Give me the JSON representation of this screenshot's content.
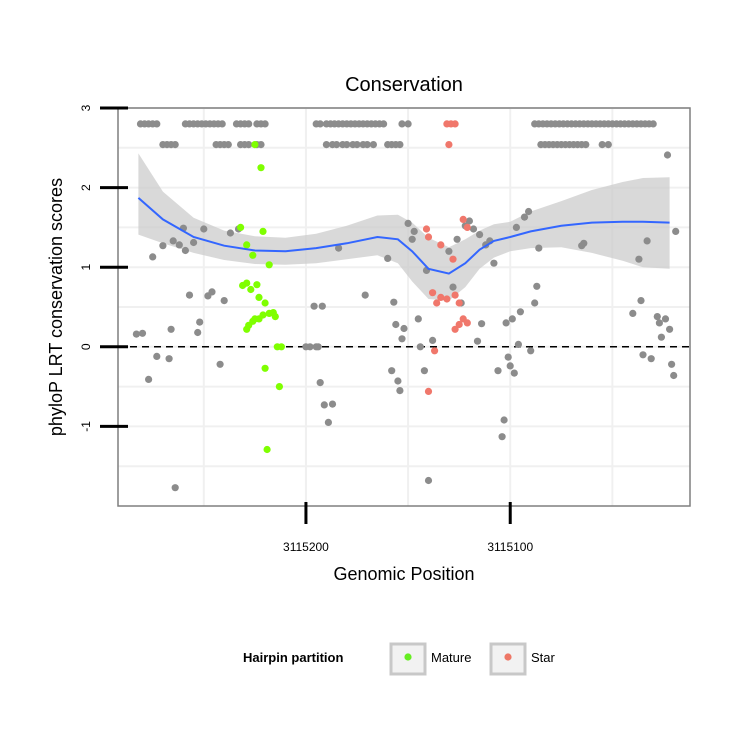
{
  "chart_data": {
    "type": "scatter",
    "title": "Conservation",
    "xlabel": "Genomic Position",
    "ylabel": "phyloP LRT conservation scores",
    "x_reversed": true,
    "xlim": [
      3115292,
      3115012
    ],
    "ylim": [
      -2.0,
      3.0
    ],
    "x_ticks": [
      {
        "value": 3115200,
        "label": "3115200"
      },
      {
        "value": 3115100,
        "label": "3115100"
      }
    ],
    "y_ticks": [
      {
        "value": -1,
        "label": "-1"
      },
      {
        "value": 0,
        "label": "0"
      },
      {
        "value": 1,
        "label": "1"
      },
      {
        "value": 2,
        "label": "2"
      },
      {
        "value": 3,
        "label": "3"
      }
    ],
    "grid": true,
    "reference_line": {
      "y": 0,
      "style": "dashed"
    },
    "colors": {
      "other": "#8c8c8c",
      "Mature": "#7fff00",
      "Star": "#f0776b",
      "smooth": "#3366ff",
      "ribbon": "#cccccc"
    },
    "legend": {
      "title": "Hairpin partition",
      "position": "bottom",
      "entries": [
        {
          "label": "Mature",
          "color": "#66ee22"
        },
        {
          "label": "Star",
          "color": "#ee7766"
        }
      ]
    },
    "smooth": {
      "x": [
        3115282,
        3115270,
        3115255,
        3115240,
        3115225,
        3115210,
        3115195,
        3115180,
        3115165,
        3115155,
        3115148,
        3115140,
        3115130,
        3115122,
        3115115,
        3115108,
        3115100,
        3115090,
        3115075,
        3115060,
        3115045,
        3115035,
        3115022
      ],
      "y": [
        1.87,
        1.6,
        1.38,
        1.27,
        1.21,
        1.2,
        1.24,
        1.3,
        1.38,
        1.35,
        1.2,
        0.98,
        0.92,
        1.05,
        1.22,
        1.33,
        1.38,
        1.45,
        1.52,
        1.56,
        1.57,
        1.57,
        1.56
      ],
      "lower": [
        1.41,
        1.3,
        1.18,
        1.09,
        1.04,
        1.03,
        1.05,
        1.1,
        1.15,
        1.05,
        0.82,
        0.6,
        0.58,
        0.75,
        0.98,
        1.12,
        1.2,
        1.24,
        1.25,
        1.18,
        1.08,
        1.0,
        0.98
      ],
      "upper": [
        2.43,
        1.95,
        1.62,
        1.46,
        1.39,
        1.37,
        1.42,
        1.52,
        1.65,
        1.66,
        1.56,
        1.37,
        1.25,
        1.35,
        1.46,
        1.54,
        1.57,
        1.7,
        1.83,
        1.97,
        2.07,
        2.12,
        2.13
      ]
    },
    "series": [
      {
        "group": "other",
        "points": [
          [
            3115281,
            2.8
          ],
          [
            3115279,
            2.8
          ],
          [
            3115277,
            2.8
          ],
          [
            3115275,
            2.8
          ],
          [
            3115273,
            2.8
          ],
          [
            3115270,
            2.54
          ],
          [
            3115268,
            2.54
          ],
          [
            3115266,
            2.54
          ],
          [
            3115264,
            2.54
          ],
          [
            3115259,
            2.8
          ],
          [
            3115257,
            2.8
          ],
          [
            3115255,
            2.8
          ],
          [
            3115253,
            2.8
          ],
          [
            3115251,
            2.8
          ],
          [
            3115249,
            2.8
          ],
          [
            3115247,
            2.8
          ],
          [
            3115245,
            2.8
          ],
          [
            3115243,
            2.8
          ],
          [
            3115241,
            2.8
          ],
          [
            3115244,
            2.54
          ],
          [
            3115242,
            2.54
          ],
          [
            3115240,
            2.54
          ],
          [
            3115238,
            2.54
          ],
          [
            3115234,
            2.8
          ],
          [
            3115232,
            2.8
          ],
          [
            3115230,
            2.8
          ],
          [
            3115228,
            2.8
          ],
          [
            3115224,
            2.8
          ],
          [
            3115222,
            2.8
          ],
          [
            3115220,
            2.8
          ],
          [
            3115232,
            2.54
          ],
          [
            3115230,
            2.54
          ],
          [
            3115228,
            2.54
          ],
          [
            3115224,
            2.54
          ],
          [
            3115222,
            2.54
          ],
          [
            3115195,
            2.8
          ],
          [
            3115193,
            2.8
          ],
          [
            3115190,
            2.8
          ],
          [
            3115188,
            2.8
          ],
          [
            3115186,
            2.8
          ],
          [
            3115184,
            2.8
          ],
          [
            3115182,
            2.8
          ],
          [
            3115180,
            2.8
          ],
          [
            3115178,
            2.8
          ],
          [
            3115176,
            2.8
          ],
          [
            3115174,
            2.8
          ],
          [
            3115172,
            2.8
          ],
          [
            3115170,
            2.8
          ],
          [
            3115168,
            2.8
          ],
          [
            3115166,
            2.8
          ],
          [
            3115164,
            2.8
          ],
          [
            3115162,
            2.8
          ],
          [
            3115190,
            2.54
          ],
          [
            3115187,
            2.54
          ],
          [
            3115185,
            2.54
          ],
          [
            3115182,
            2.54
          ],
          [
            3115180,
            2.54
          ],
          [
            3115177,
            2.54
          ],
          [
            3115175,
            2.54
          ],
          [
            3115172,
            2.54
          ],
          [
            3115170,
            2.54
          ],
          [
            3115167,
            2.54
          ],
          [
            3115160,
            2.54
          ],
          [
            3115158,
            2.54
          ],
          [
            3115156,
            2.54
          ],
          [
            3115154,
            2.54
          ],
          [
            3115153,
            2.8
          ],
          [
            3115150,
            2.8
          ],
          [
            3115088,
            2.8
          ],
          [
            3115086,
            2.8
          ],
          [
            3115084,
            2.8
          ],
          [
            3115082,
            2.8
          ],
          [
            3115080,
            2.8
          ],
          [
            3115078,
            2.8
          ],
          [
            3115076,
            2.8
          ],
          [
            3115074,
            2.8
          ],
          [
            3115072,
            2.8
          ],
          [
            3115070,
            2.8
          ],
          [
            3115068,
            2.8
          ],
          [
            3115066,
            2.8
          ],
          [
            3115064,
            2.8
          ],
          [
            3115062,
            2.8
          ],
          [
            3115060,
            2.8
          ],
          [
            3115058,
            2.8
          ],
          [
            3115056,
            2.8
          ],
          [
            3115054,
            2.8
          ],
          [
            3115052,
            2.8
          ],
          [
            3115050,
            2.8
          ],
          [
            3115048,
            2.8
          ],
          [
            3115046,
            2.8
          ],
          [
            3115044,
            2.8
          ],
          [
            3115042,
            2.8
          ],
          [
            3115040,
            2.8
          ],
          [
            3115038,
            2.8
          ],
          [
            3115036,
            2.8
          ],
          [
            3115034,
            2.8
          ],
          [
            3115032,
            2.8
          ],
          [
            3115030,
            2.8
          ],
          [
            3115085,
            2.54
          ],
          [
            3115083,
            2.54
          ],
          [
            3115081,
            2.54
          ],
          [
            3115079,
            2.54
          ],
          [
            3115077,
            2.54
          ],
          [
            3115075,
            2.54
          ],
          [
            3115073,
            2.54
          ],
          [
            3115071,
            2.54
          ],
          [
            3115069,
            2.54
          ],
          [
            3115067,
            2.54
          ],
          [
            3115065,
            2.54
          ],
          [
            3115063,
            2.54
          ],
          [
            3115055,
            2.54
          ],
          [
            3115052,
            2.54
          ],
          [
            3115023,
            2.41
          ],
          [
            3115283,
            0.16
          ],
          [
            3115280,
            0.17
          ],
          [
            3115277,
            -0.41
          ],
          [
            3115275,
            1.13
          ],
          [
            3115273,
            -0.12
          ],
          [
            3115270,
            1.27
          ],
          [
            3115267,
            -0.15
          ],
          [
            3115266,
            0.22
          ],
          [
            3115265,
            1.33
          ],
          [
            3115264,
            -1.77
          ],
          [
            3115262,
            1.28
          ],
          [
            3115260,
            1.49
          ],
          [
            3115259,
            1.21
          ],
          [
            3115257,
            0.65
          ],
          [
            3115255,
            1.31
          ],
          [
            3115253,
            0.18
          ],
          [
            3115252,
            0.31
          ],
          [
            3115250,
            1.48
          ],
          [
            3115248,
            0.64
          ],
          [
            3115246,
            0.69
          ],
          [
            3115242,
            -0.22
          ],
          [
            3115240,
            0.58
          ],
          [
            3115237,
            1.43
          ],
          [
            3115233,
            1.48
          ],
          [
            3115200,
            0.0
          ],
          [
            3115198,
            0.0
          ],
          [
            3115196,
            0.51
          ],
          [
            3115195,
            0.0
          ],
          [
            3115194,
            0.0
          ],
          [
            3115193,
            -0.45
          ],
          [
            3115192,
            0.51
          ],
          [
            3115191,
            -0.73
          ],
          [
            3115189,
            -0.95
          ],
          [
            3115187,
            -0.72
          ],
          [
            3115184,
            1.24
          ],
          [
            3115171,
            0.65
          ],
          [
            3115160,
            1.11
          ],
          [
            3115158,
            -0.3
          ],
          [
            3115157,
            0.56
          ],
          [
            3115156,
            0.28
          ],
          [
            3115155,
            -0.43
          ],
          [
            3115154,
            -0.55
          ],
          [
            3115153,
            0.1
          ],
          [
            3115152,
            0.23
          ],
          [
            3115150,
            1.55
          ],
          [
            3115148,
            1.35
          ],
          [
            3115147,
            1.45
          ],
          [
            3115145,
            0.35
          ],
          [
            3115144,
            0.0
          ],
          [
            3115142,
            -0.3
          ],
          [
            3115141,
            0.96
          ],
          [
            3115140,
            -1.68
          ],
          [
            3115138,
            0.08
          ],
          [
            3115130,
            1.2
          ],
          [
            3115128,
            0.75
          ],
          [
            3115126,
            1.35
          ],
          [
            3115124,
            0.55
          ],
          [
            3115122,
            1.52
          ],
          [
            3115120,
            1.58
          ],
          [
            3115118,
            1.48
          ],
          [
            3115116,
            0.07
          ],
          [
            3115115,
            1.41
          ],
          [
            3115114,
            0.29
          ],
          [
            3115112,
            1.28
          ],
          [
            3115110,
            1.33
          ],
          [
            3115108,
            1.05
          ],
          [
            3115106,
            -0.3
          ],
          [
            3115104,
            -1.13
          ],
          [
            3115103,
            -0.92
          ],
          [
            3115102,
            0.3
          ],
          [
            3115101,
            -0.13
          ],
          [
            3115100,
            -0.24
          ],
          [
            3115099,
            0.35
          ],
          [
            3115098,
            -0.33
          ],
          [
            3115097,
            1.5
          ],
          [
            3115096,
            0.03
          ],
          [
            3115095,
            0.44
          ],
          [
            3115093,
            1.63
          ],
          [
            3115091,
            1.7
          ],
          [
            3115090,
            -0.05
          ],
          [
            3115088,
            0.55
          ],
          [
            3115087,
            0.76
          ],
          [
            3115086,
            1.24
          ],
          [
            3115065,
            1.27
          ],
          [
            3115064,
            1.3
          ],
          [
            3115040,
            0.42
          ],
          [
            3115037,
            1.1
          ],
          [
            3115036,
            0.58
          ],
          [
            3115035,
            -0.1
          ],
          [
            3115033,
            1.33
          ],
          [
            3115031,
            -0.15
          ],
          [
            3115028,
            0.38
          ],
          [
            3115027,
            0.3
          ],
          [
            3115026,
            0.12
          ],
          [
            3115024,
            0.35
          ],
          [
            3115022,
            0.22
          ],
          [
            3115021,
            -0.22
          ],
          [
            3115020,
            -0.36
          ],
          [
            3115019,
            1.45
          ]
        ]
      },
      {
        "group": "Mature",
        "points": [
          [
            3115225,
            2.54
          ],
          [
            3115222,
            2.25
          ],
          [
            3115232,
            1.5
          ],
          [
            3115229,
            1.28
          ],
          [
            3115226,
            1.15
          ],
          [
            3115221,
            1.45
          ],
          [
            3115218,
            1.03
          ],
          [
            3115231,
            0.77
          ],
          [
            3115229,
            0.8
          ],
          [
            3115227,
            0.72
          ],
          [
            3115224,
            0.78
          ],
          [
            3115223,
            0.62
          ],
          [
            3115220,
            0.55
          ],
          [
            3115218,
            0.42
          ],
          [
            3115216,
            0.43
          ],
          [
            3115215,
            0.38
          ],
          [
            3115229,
            0.22
          ],
          [
            3115228,
            0.27
          ],
          [
            3115226,
            0.32
          ],
          [
            3115225,
            0.35
          ],
          [
            3115223,
            0.35
          ],
          [
            3115221,
            0.4
          ],
          [
            3115214,
            0.0
          ],
          [
            3115212,
            0.0
          ],
          [
            3115220,
            -0.27
          ],
          [
            3115213,
            -0.5
          ],
          [
            3115219,
            -1.29
          ]
        ]
      },
      {
        "group": "Star",
        "points": [
          [
            3115131,
            2.8
          ],
          [
            3115129,
            2.8
          ],
          [
            3115127,
            2.8
          ],
          [
            3115130,
            2.54
          ],
          [
            3115141,
            1.48
          ],
          [
            3115140,
            1.38
          ],
          [
            3115134,
            1.28
          ],
          [
            3115128,
            1.1
          ],
          [
            3115123,
            1.6
          ],
          [
            3115121,
            1.5
          ],
          [
            3115138,
            0.68
          ],
          [
            3115136,
            0.55
          ],
          [
            3115134,
            0.62
          ],
          [
            3115131,
            0.6
          ],
          [
            3115127,
            0.65
          ],
          [
            3115125,
            0.55
          ],
          [
            3115123,
            0.35
          ],
          [
            3115121,
            0.3
          ],
          [
            3115127,
            0.22
          ],
          [
            3115125,
            0.28
          ],
          [
            3115137,
            -0.05
          ],
          [
            3115140,
            -0.56
          ]
        ]
      }
    ]
  }
}
